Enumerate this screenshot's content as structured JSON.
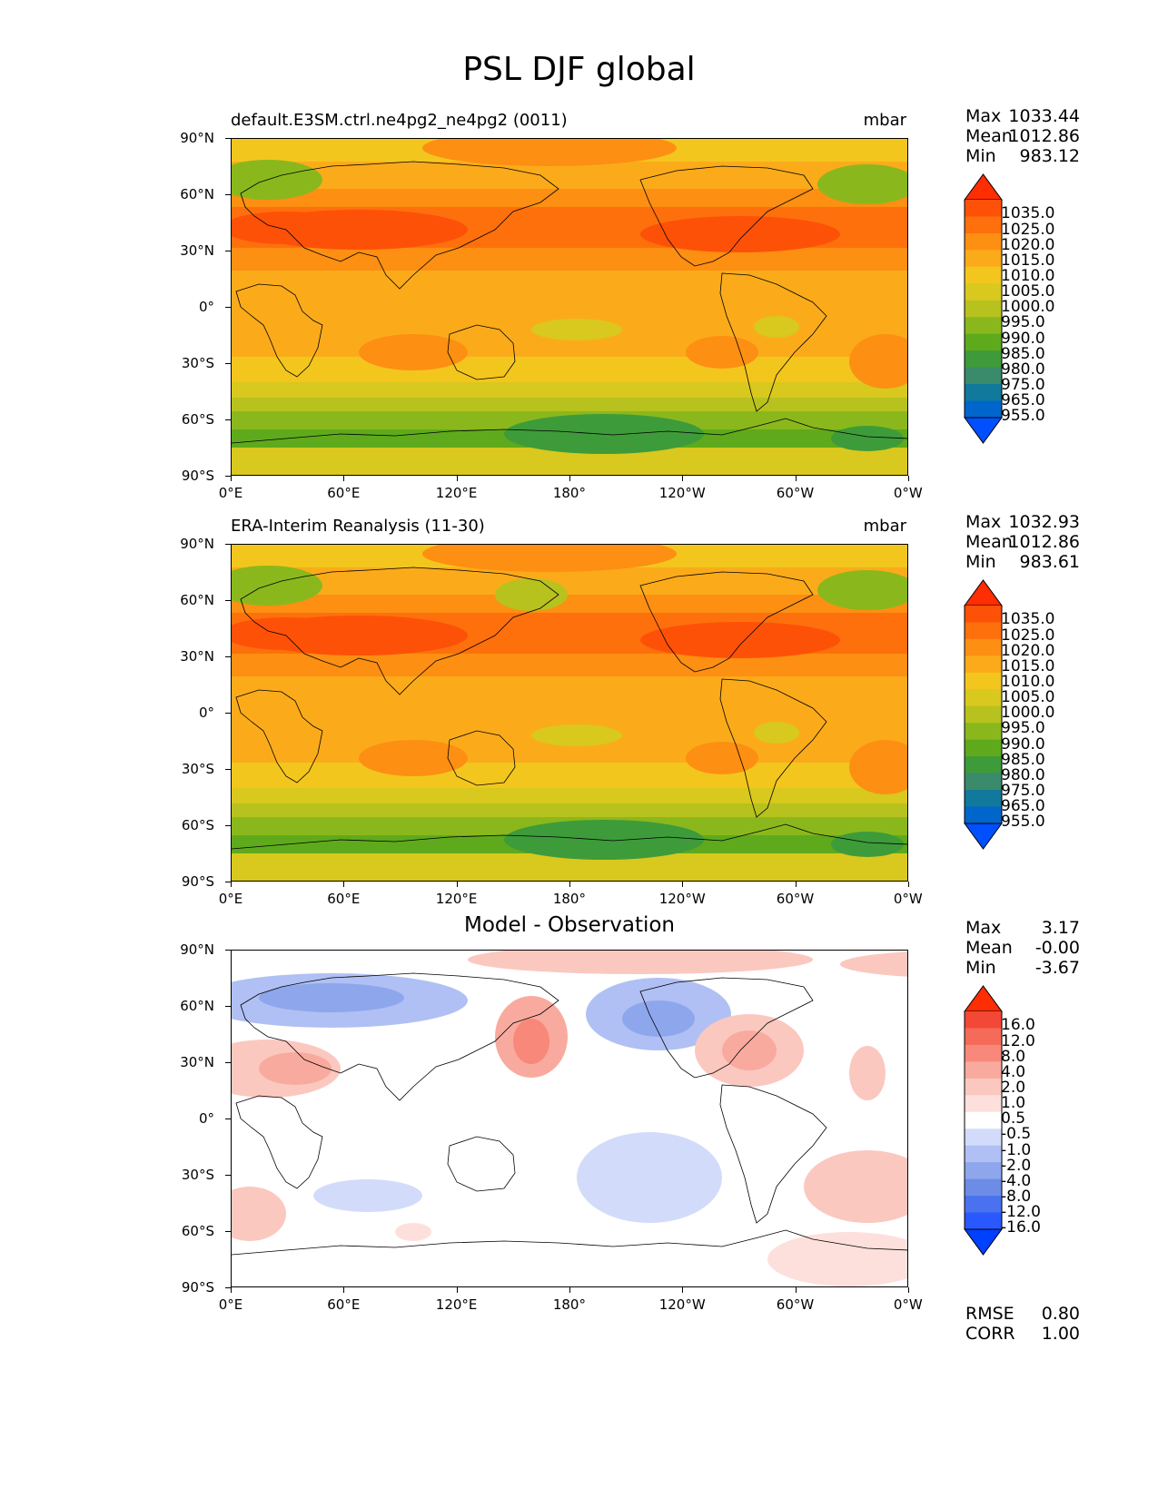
{
  "figure": {
    "title": "PSL DJF global"
  },
  "axes": {
    "yticks": [
      "90°N",
      "60°N",
      "30°N",
      "0°",
      "30°S",
      "60°S",
      "90°S"
    ],
    "xticks": [
      "0°E",
      "60°E",
      "120°E",
      "180°",
      "120°W",
      "60°W",
      "0°W"
    ]
  },
  "panels": [
    {
      "title_left": "default.E3SM.ctrl.ne4pg2_ne4pg2 (0011)",
      "title_right": "mbar",
      "title_center": "",
      "stats": {
        "max_label": "Max",
        "max": "1033.44",
        "mean_label": "Mean",
        "mean": "1012.86",
        "min_label": "Min",
        "min": "983.12"
      },
      "colorbar": [
        "1035.0",
        "1025.0",
        "1020.0",
        "1015.0",
        "1010.0",
        "1005.0",
        "1000.0",
        "995.0",
        "990.0",
        "985.0",
        "980.0",
        "975.0",
        "965.0",
        "955.0"
      ]
    },
    {
      "title_left": "ERA-Interim Reanalysis (11-30)",
      "title_right": "mbar",
      "title_center": "",
      "stats": {
        "max_label": "Max",
        "max": "1032.93",
        "mean_label": "Mean",
        "mean": "1012.86",
        "min_label": "Min",
        "min": "983.61"
      },
      "colorbar": [
        "1035.0",
        "1025.0",
        "1020.0",
        "1015.0",
        "1010.0",
        "1005.0",
        "1000.0",
        "995.0",
        "990.0",
        "985.0",
        "980.0",
        "975.0",
        "965.0",
        "955.0"
      ]
    },
    {
      "title_left": "",
      "title_right": "",
      "title_center": "Model - Observation",
      "stats": {
        "max_label": "Max",
        "max": "3.17",
        "mean_label": "Mean",
        "mean": "-0.00",
        "min_label": "Min",
        "min": "-3.67"
      },
      "colorbar": [
        "16.0",
        "12.0",
        "8.0",
        "4.0",
        "2.0",
        "1.0",
        "0.5",
        "-0.5",
        "-1.0",
        "-2.0",
        "-4.0",
        "-8.0",
        "-12.0",
        "-16.0"
      ]
    }
  ],
  "metrics": {
    "rmse_label": "RMSE",
    "rmse": "0.80",
    "corr_label": "CORR",
    "corr": "1.00"
  },
  "colors": {
    "abs_scale": [
      "#0050ff",
      "#0066cc",
      "#10799c",
      "#3a8a6c",
      "#3e9b3a",
      "#5eaa1c",
      "#8ab81c",
      "#b7c21e",
      "#d9c81e",
      "#f3c61e",
      "#fbab1a",
      "#fd8f12",
      "#fe700c",
      "#fe5108",
      "#fe2d02"
    ],
    "diff_scale": [
      "#0040ff",
      "#2a58ff",
      "#4a72ee",
      "#6c8ce6",
      "#8ea6ec",
      "#b0c0f4",
      "#d2dcfa",
      "#ffffff",
      "#fde0dc",
      "#fbc8c0",
      "#f9aa9e",
      "#f8887a",
      "#f56a58",
      "#f34836",
      "#fe2d02"
    ]
  }
}
